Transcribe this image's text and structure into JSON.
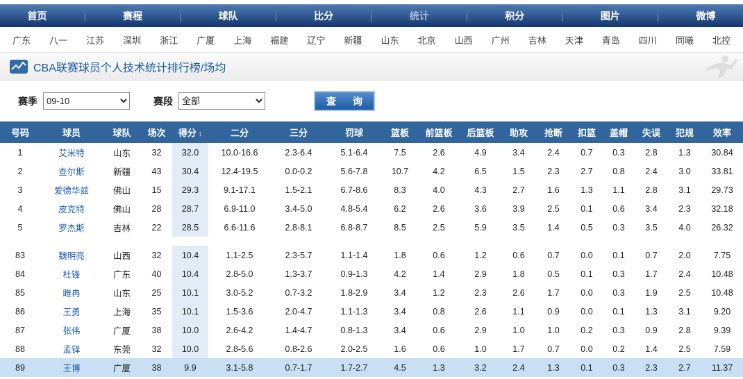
{
  "nav": {
    "items": [
      {
        "key": "home",
        "label": "首页",
        "active": false
      },
      {
        "key": "schedule",
        "label": "赛程",
        "active": false
      },
      {
        "key": "teams",
        "label": "球队",
        "active": false
      },
      {
        "key": "scores",
        "label": "比分",
        "active": false
      },
      {
        "key": "stats",
        "label": "统计",
        "active": true
      },
      {
        "key": "standings",
        "label": "积分",
        "active": false
      },
      {
        "key": "photos",
        "label": "图片",
        "active": false
      },
      {
        "key": "weibo",
        "label": "微博",
        "active": false
      }
    ]
  },
  "teams": [
    "广东",
    "八一",
    "江苏",
    "深圳",
    "浙江",
    "广厦",
    "上海",
    "福建",
    "辽宁",
    "新疆",
    "山东",
    "北京",
    "山西",
    "广州",
    "吉林",
    "天津",
    "青岛",
    "四川",
    "同曦",
    "北控"
  ],
  "header": {
    "title": "CBA联赛球员个人技术统计排行榜/场均"
  },
  "filters": {
    "season_label": "赛季",
    "season_value": "09-10",
    "stage_label": "赛段",
    "stage_value": "全部",
    "query_label": "查 询"
  },
  "table": {
    "columns": [
      "号码",
      "球员",
      "球队",
      "场次",
      "得分",
      "二分",
      "三分",
      "罚球",
      "篮板",
      "前篮板",
      "后篮板",
      "助攻",
      "抢断",
      "扣篮",
      "盖帽",
      "失误",
      "犯规",
      "效率"
    ],
    "sorted_column": "得分",
    "rows_top": [
      [
        "1",
        "艾米特",
        "山东",
        "32",
        "32.0",
        "10.0-16.6",
        "2.3-6.4",
        "5.1-6.4",
        "7.5",
        "2.6",
        "4.9",
        "3.4",
        "2.4",
        "0.7",
        "0.3",
        "2.8",
        "1.3",
        "30.84"
      ],
      [
        "2",
        "查尔斯",
        "新疆",
        "43",
        "30.4",
        "12.4-19.5",
        "0.0-0.2",
        "5.6-7.8",
        "10.7",
        "4.2",
        "6.5",
        "1.5",
        "2.3",
        "2.7",
        "0.8",
        "2.4",
        "3.0",
        "33.81"
      ],
      [
        "3",
        "爱德华兹",
        "佛山",
        "15",
        "29.3",
        "9.1-17.1",
        "1.5-2.1",
        "6.7-8.6",
        "8.3",
        "4.0",
        "4.3",
        "2.7",
        "1.6",
        "1.3",
        "1.1",
        "2.8",
        "3.1",
        "29.73"
      ],
      [
        "4",
        "皮克特",
        "佛山",
        "28",
        "28.7",
        "6.9-11.0",
        "3.4-5.0",
        "4.8-5.4",
        "6.2",
        "2.6",
        "3.6",
        "3.9",
        "2.5",
        "0.1",
        "0.6",
        "3.4",
        "2.3",
        "32.18"
      ],
      [
        "5",
        "罗杰斯",
        "吉林",
        "22",
        "28.5",
        "6.6-11.6",
        "2.8-8.1",
        "6.8-8.7",
        "8.5",
        "2.5",
        "5.9",
        "3.5",
        "1.4",
        "0.5",
        "0.3",
        "3.5",
        "4.0",
        "26.32"
      ]
    ],
    "rows_bottom": [
      [
        "83",
        "魏明亮",
        "山西",
        "32",
        "10.4",
        "1.1-2.5",
        "2.3-5.7",
        "1.1-1.4",
        "1.8",
        "0.6",
        "1.2",
        "0.6",
        "0.7",
        "0.0",
        "0.1",
        "0.7",
        "2.0",
        "7.75"
      ],
      [
        "84",
        "杜锋",
        "广东",
        "40",
        "10.4",
        "2.8-5.0",
        "1.3-3.7",
        "0.9-1.3",
        "4.2",
        "1.4",
        "2.9",
        "1.8",
        "0.5",
        "0.1",
        "0.3",
        "1.7",
        "2.4",
        "10.48"
      ],
      [
        "85",
        "睢冉",
        "山东",
        "25",
        "10.1",
        "3.0-5.2",
        "0.7-3.2",
        "1.8-2.9",
        "3.4",
        "1.2",
        "2.3",
        "2.6",
        "1.7",
        "0.0",
        "0.3",
        "1.9",
        "2.5",
        "10.48"
      ],
      [
        "86",
        "王勇",
        "上海",
        "35",
        "10.1",
        "1.5-3.6",
        "2.0-4.7",
        "1.1-1.3",
        "3.4",
        "0.8",
        "2.6",
        "1.1",
        "0.9",
        "0.0",
        "0.1",
        "1.3",
        "3.1",
        "9.20"
      ],
      [
        "87",
        "张伟",
        "广厦",
        "38",
        "10.0",
        "2.6-4.2",
        "1.4-4.7",
        "0.8-1.3",
        "3.4",
        "0.6",
        "2.9",
        "1.0",
        "1.0",
        "0.2",
        "0.3",
        "0.9",
        "2.8",
        "9.39"
      ],
      [
        "88",
        "孟铎",
        "东莞",
        "32",
        "10.0",
        "2.8-5.6",
        "0.8-2.6",
        "2.0-2.5",
        "1.6",
        "0.6",
        "1.0",
        "1.7",
        "0.7",
        "0.0",
        "0.2",
        "1.4",
        "2.5",
        "7.59"
      ],
      [
        "89",
        "王博",
        "广厦",
        "38",
        "9.9",
        "3.1-5.8",
        "0.7-1.7",
        "1.7-2.7",
        "4.5",
        "1.3",
        "3.2",
        "2.4",
        "1.3",
        "0.1",
        "0.3",
        "2.3",
        "2.7",
        "11.37"
      ]
    ],
    "highlighted_player": "王博"
  },
  "colors": {
    "nav_gradient_top": "#4d7ab2",
    "nav_gradient_bottom": "#14356e",
    "table_header_bg": "#31659c",
    "score_column_bg": "#e2ecf6",
    "highlight_row_bg": "#c8dff4",
    "link_blue": "#1c5cab",
    "title_blue": "#17599f"
  }
}
